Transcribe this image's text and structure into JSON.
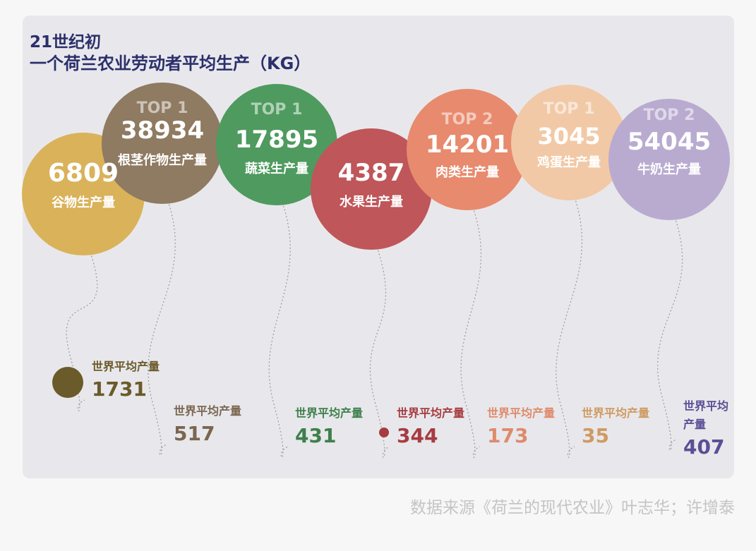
{
  "title_lines": [
    "21世纪初",
    "一个荷兰农业劳动者平均生产（KG）"
  ],
  "source": "数据来源《荷兰的现代农业》叶志华；许增泰",
  "chart_data": {
    "type": "bubble",
    "series": [
      {
        "name": "谷物生产量",
        "rank": "",
        "value": 6809,
        "world_label": "世界平均产量",
        "world_value": 1731,
        "color": "#d9b25a",
        "world_color": "#6b5a2a"
      },
      {
        "name": "根茎作物生产量",
        "rank": "TOP 1",
        "value": 38934,
        "world_label": "世界平均产量",
        "world_value": 517,
        "color": "#8f7a62",
        "world_color": "#7a6650"
      },
      {
        "name": "蔬菜生产量",
        "rank": "TOP 1",
        "value": 17895,
        "world_label": "世界平均产量",
        "world_value": 431,
        "color": "#4f9a5f",
        "world_color": "#3f7f4c"
      },
      {
        "name": "水果生产量",
        "rank": "",
        "value": 4387,
        "world_label": "世界平均产量",
        "world_value": 344,
        "color": "#bf565a",
        "world_color": "#a63c40"
      },
      {
        "name": "肉类生产量",
        "rank": "TOP 2",
        "value": 14201,
        "world_label": "世界平均产量",
        "world_value": 173,
        "color": "#e88a6e",
        "world_color": "#df8a6c"
      },
      {
        "name": "鸡蛋生产量",
        "rank": "TOP 1",
        "value": 3045,
        "world_label": "世界平均产量",
        "world_value": 35,
        "color": "#f2c9a6",
        "world_color": "#cf9a62"
      },
      {
        "name": "牛奶生产量",
        "rank": "TOP 2",
        "value": 54045,
        "world_label": "世界平均产量",
        "world_value": 407,
        "color": "#b9abd0",
        "world_color": "#5a4f96"
      }
    ]
  }
}
